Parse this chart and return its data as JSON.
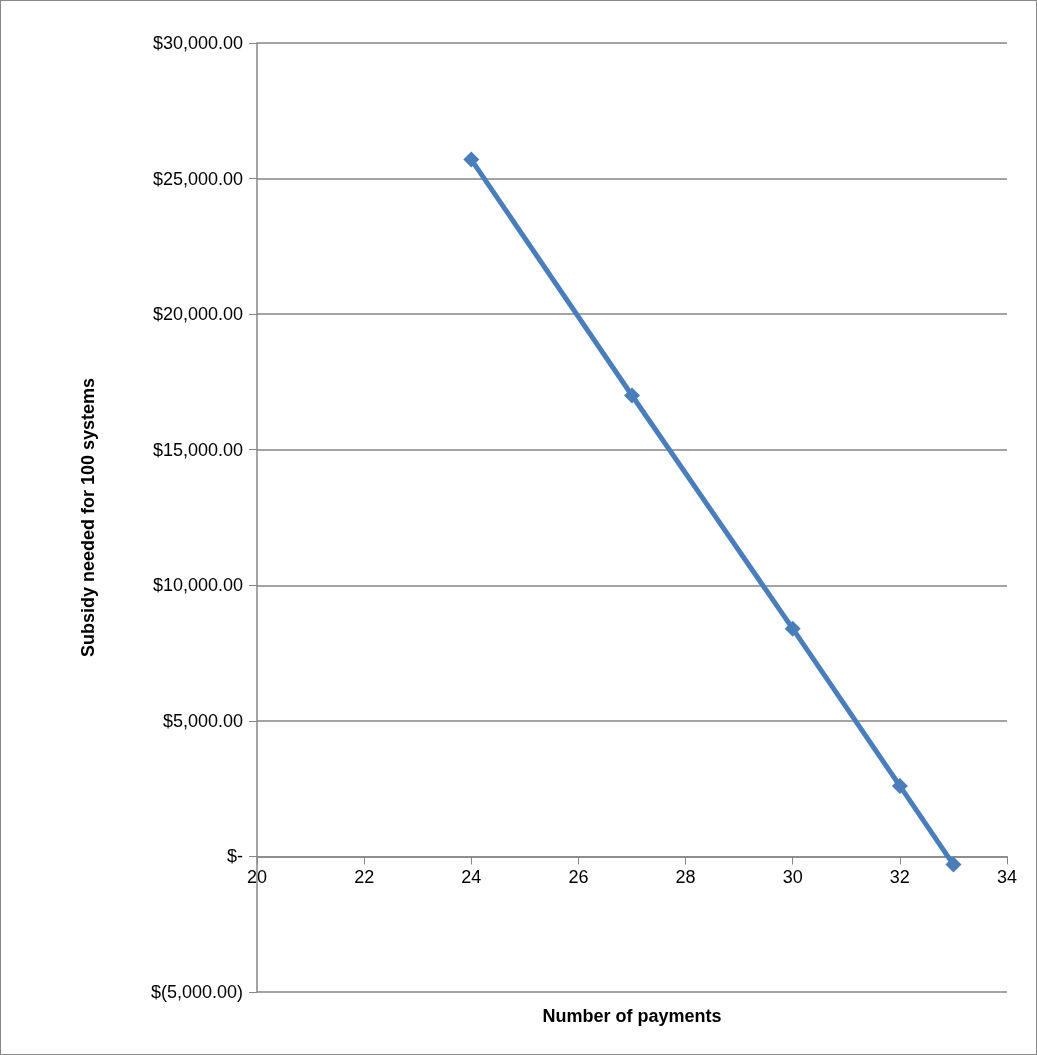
{
  "chart_data": {
    "type": "line",
    "xlabel": "Number of payments",
    "ylabel": "Subsidy needed for 100 systems",
    "x": [
      24,
      27,
      30,
      32,
      33
    ],
    "series": [
      {
        "color": "#4a7ebb",
        "values": [
          25700,
          17000,
          8400,
          2600,
          -300
        ]
      }
    ],
    "xlim": [
      20,
      34
    ],
    "xticks": [
      20,
      22,
      24,
      26,
      28,
      30,
      32,
      34
    ],
    "ylim": [
      -5000,
      30000
    ],
    "yticks": [
      {
        "value": -5000,
        "label": "$(5,000.00)"
      },
      {
        "value": 0,
        "label": "$-"
      },
      {
        "value": 5000,
        "label": "$5,000.00"
      },
      {
        "value": 10000,
        "label": "$10,000.00"
      },
      {
        "value": 15000,
        "label": "$15,000.00"
      },
      {
        "value": 20000,
        "label": "$20,000.00"
      },
      {
        "value": 25000,
        "label": "$25,000.00"
      },
      {
        "value": 30000,
        "label": "$30,000.00"
      }
    ],
    "grid": "y",
    "marker": "diamond",
    "line_style": "solid"
  }
}
